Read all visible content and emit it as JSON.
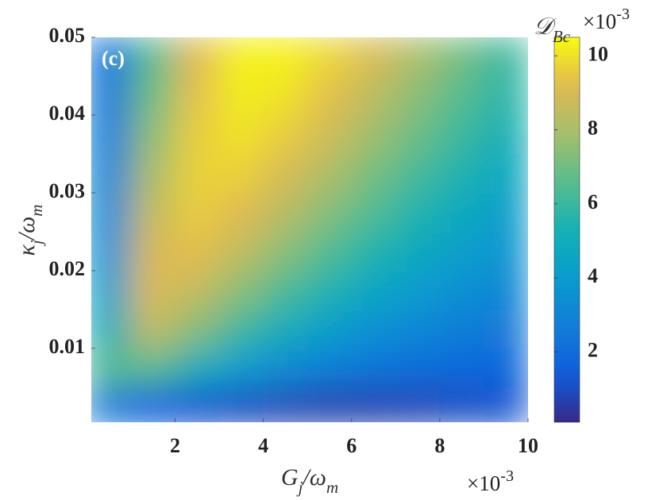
{
  "chart_data": {
    "type": "heatmap",
    "annotation": "(c)",
    "xlabel": [
      {
        "text": "G"
      },
      {
        "text": "j",
        "sub": true
      },
      {
        "text": "/ω"
      },
      {
        "text": "m",
        "sub": true
      }
    ],
    "ylabel": [
      {
        "text": "κ"
      },
      {
        "text": "j",
        "sub": true
      },
      {
        "text": "/ω"
      },
      {
        "text": "m",
        "sub": true
      }
    ],
    "x_exponent": {
      "base": "×10",
      "power": "-3"
    },
    "colorbar_label": [
      {
        "text": "𝒟"
      },
      {
        "text": "Bc",
        "sub": true
      }
    ],
    "colorbar_exponent": {
      "base": "×10",
      "power": "-3"
    },
    "colormap": "parula",
    "x": [
      0.5,
      1.5,
      2.5,
      3.5,
      4.5,
      5.5,
      6.5,
      7.5,
      8.5,
      9.5
    ],
    "y": [
      0.0025,
      0.0075,
      0.0125,
      0.0175,
      0.0225,
      0.0275,
      0.0325,
      0.0375,
      0.0425,
      0.0475
    ],
    "values": [
      [
        2.5,
        1.5,
        1.2,
        1.0,
        0.8,
        0.7,
        0.7,
        0.8,
        1.0,
        1.2
      ],
      [
        6.5,
        6.5,
        5.0,
        4.0,
        3.3,
        2.8,
        2.4,
        2.1,
        1.9,
        1.8
      ],
      [
        5.0,
        8.5,
        7.3,
        6.0,
        5.0,
        4.2,
        3.6,
        3.1,
        2.8,
        2.5
      ],
      [
        4.2,
        9.1,
        8.6,
        7.4,
        6.3,
        5.4,
        4.6,
        4.0,
        3.5,
        3.1
      ],
      [
        3.6,
        9.0,
        9.3,
        8.5,
        7.4,
        6.4,
        5.5,
        4.8,
        4.2,
        3.7
      ],
      [
        3.3,
        8.6,
        9.6,
        9.2,
        8.3,
        7.3,
        6.4,
        5.5,
        4.8,
        4.2
      ],
      [
        3.0,
        8.0,
        9.7,
        9.7,
        9.0,
        8.1,
        7.1,
        6.2,
        5.4,
        4.7
      ],
      [
        2.8,
        7.5,
        9.6,
        10.0,
        9.6,
        8.8,
        7.8,
        6.9,
        6.0,
        5.2
      ],
      [
        2.6,
        7.0,
        9.4,
        10.2,
        10.0,
        9.3,
        8.4,
        7.4,
        6.5,
        5.7
      ],
      [
        2.5,
        6.5,
        9.2,
        10.3,
        10.3,
        9.8,
        9.0,
        8.0,
        7.0,
        6.0
      ]
    ],
    "xlim": [
      0.1,
      10
    ],
    "xticks": [
      2,
      4,
      6,
      8,
      10
    ],
    "ylim": [
      0.0005,
      0.05
    ],
    "yticks": [
      0.01,
      0.02,
      0.03,
      0.04,
      0.05
    ],
    "clim": [
      0.1,
      10.5
    ],
    "cticks": [
      2,
      4,
      6,
      8,
      10
    ]
  }
}
